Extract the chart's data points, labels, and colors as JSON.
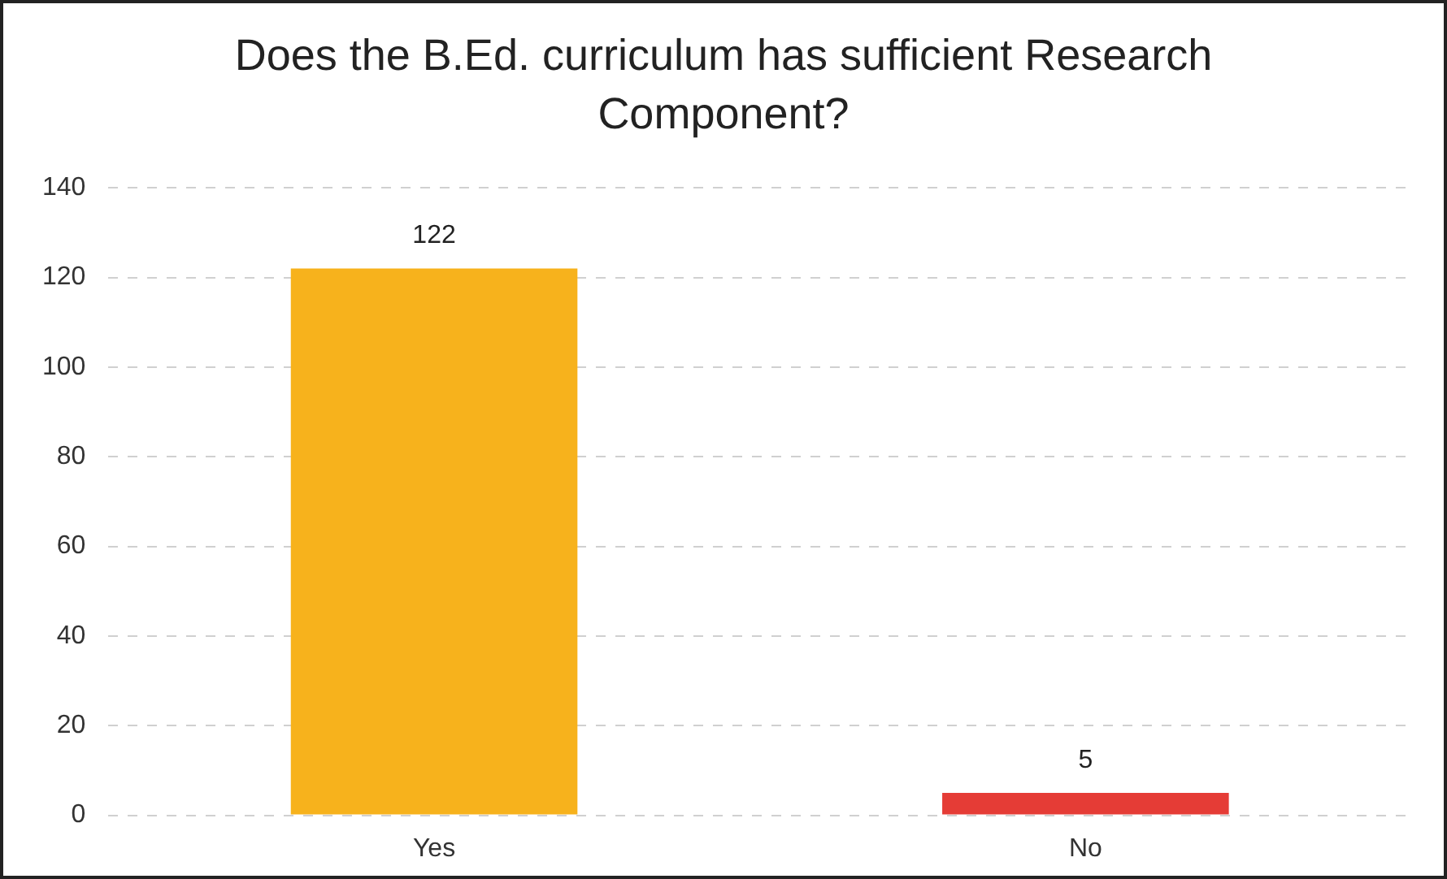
{
  "chart_data": {
    "type": "bar",
    "title": "Does the B.Ed. curriculum has sufficient Research Component?",
    "categories": [
      "Yes",
      "No"
    ],
    "values": [
      122,
      5
    ],
    "colors": [
      "#f7b21c",
      "#e53c36"
    ],
    "ylim": [
      0,
      140
    ],
    "yticks": [
      0,
      20,
      40,
      60,
      80,
      100,
      120,
      140
    ],
    "grid": "y",
    "data_labels": true,
    "legend": false
  }
}
